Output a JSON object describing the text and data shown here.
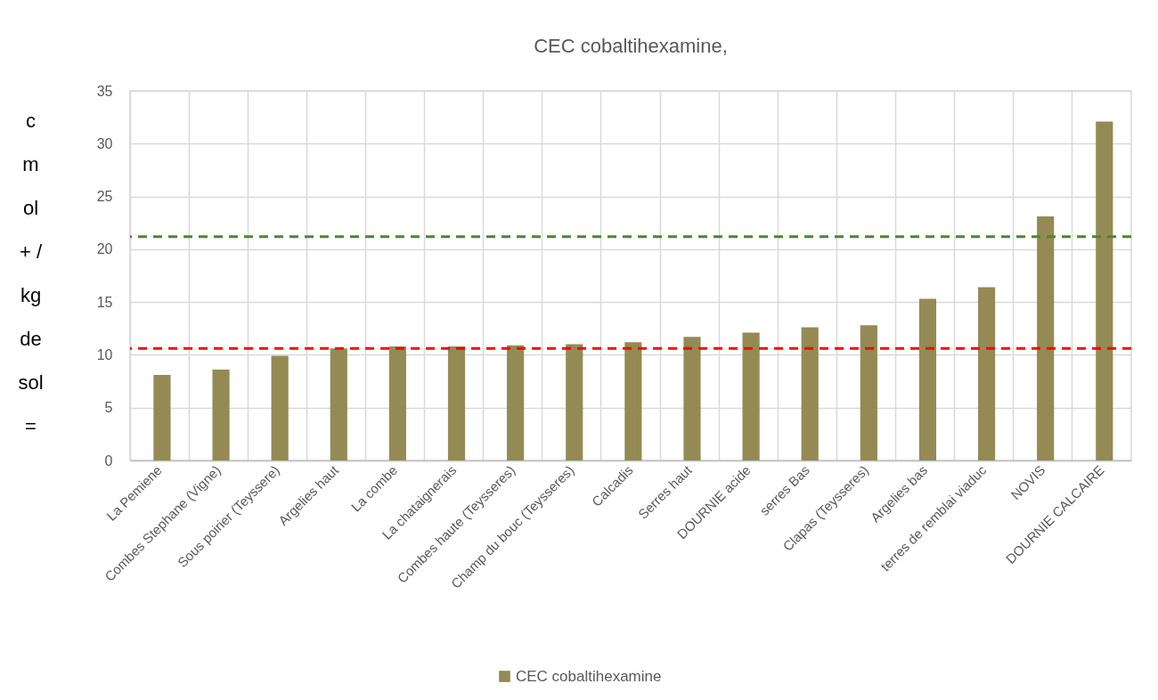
{
  "chart_data": {
    "type": "bar",
    "title": "CEC cobaltihexamine,",
    "ylabel": "cmol+ / kg de sol =",
    "categories": [
      "La Pemiene",
      "Combes Stephane (Vigne)",
      "Sous poirier (Teyssere)",
      "Argelies haut",
      "La combe",
      "La chataignerais",
      "Combes haute (Teysseres)",
      "Champ du bouc (Teysseres)",
      "Calcadis",
      "Serres haut",
      "DOURNIE acide",
      "serres Bas",
      "Clapas (Teysseres)",
      "Argelies bas",
      "terres de remblai viaduc",
      "NOVIS",
      "DOURNIE CALCAIRE"
    ],
    "series": [
      {
        "name": "CEC cobaltihexamine",
        "color": "#948a54",
        "values": [
          8.1,
          8.6,
          9.9,
          10.6,
          10.8,
          10.8,
          10.9,
          11.0,
          11.2,
          11.7,
          12.1,
          12.6,
          12.8,
          15.3,
          16.4,
          23.1,
          32.1
        ]
      }
    ],
    "ylim": [
      0,
      35
    ],
    "yticks": [
      0,
      5,
      10,
      15,
      20,
      25,
      30,
      35
    ],
    "grid": true,
    "legend": "bottom",
    "ref_lines": [
      {
        "axis": "y",
        "value": 10.6,
        "color": "#ff0000",
        "line_style": "dashed"
      },
      {
        "axis": "y",
        "value": 21.2,
        "color": "#548235",
        "line_style": "dashed"
      }
    ]
  }
}
